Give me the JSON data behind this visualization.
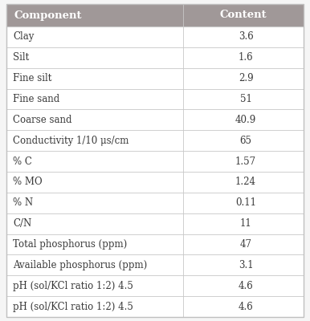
{
  "headers": [
    "Component",
    "Content"
  ],
  "rows": [
    [
      "Clay",
      "3.6"
    ],
    [
      "Silt",
      "1.6"
    ],
    [
      "Fine silt",
      "2.9"
    ],
    [
      "Fine sand",
      "51"
    ],
    [
      "Coarse sand",
      "40.9"
    ],
    [
      "Conductivity 1/10 μs/cm",
      "65"
    ],
    [
      "% C",
      "1.57"
    ],
    [
      "% MO",
      "1.24"
    ],
    [
      "% N",
      "0.11"
    ],
    [
      "C/N",
      "11"
    ],
    [
      "Total phosphorus (ppm)",
      "47"
    ],
    [
      "Available phosphorus (ppm)",
      "3.1"
    ],
    [
      "pH (sol/KCl ratio 1:2) 4.5",
      "4.6"
    ],
    [
      "pH (sol/KCl ratio 1:2) 4.5",
      "4.6"
    ]
  ],
  "header_bg": "#a09898",
  "header_text_color": "#ffffff",
  "row_bg": "#ffffff",
  "border_color": "#c8c8c8",
  "text_color": "#3a3a3a",
  "col_split": 0.595,
  "header_fontsize": 9.5,
  "row_fontsize": 8.5,
  "outer_border_color": "#c0c0c0",
  "fig_bg": "#f5f5f5"
}
